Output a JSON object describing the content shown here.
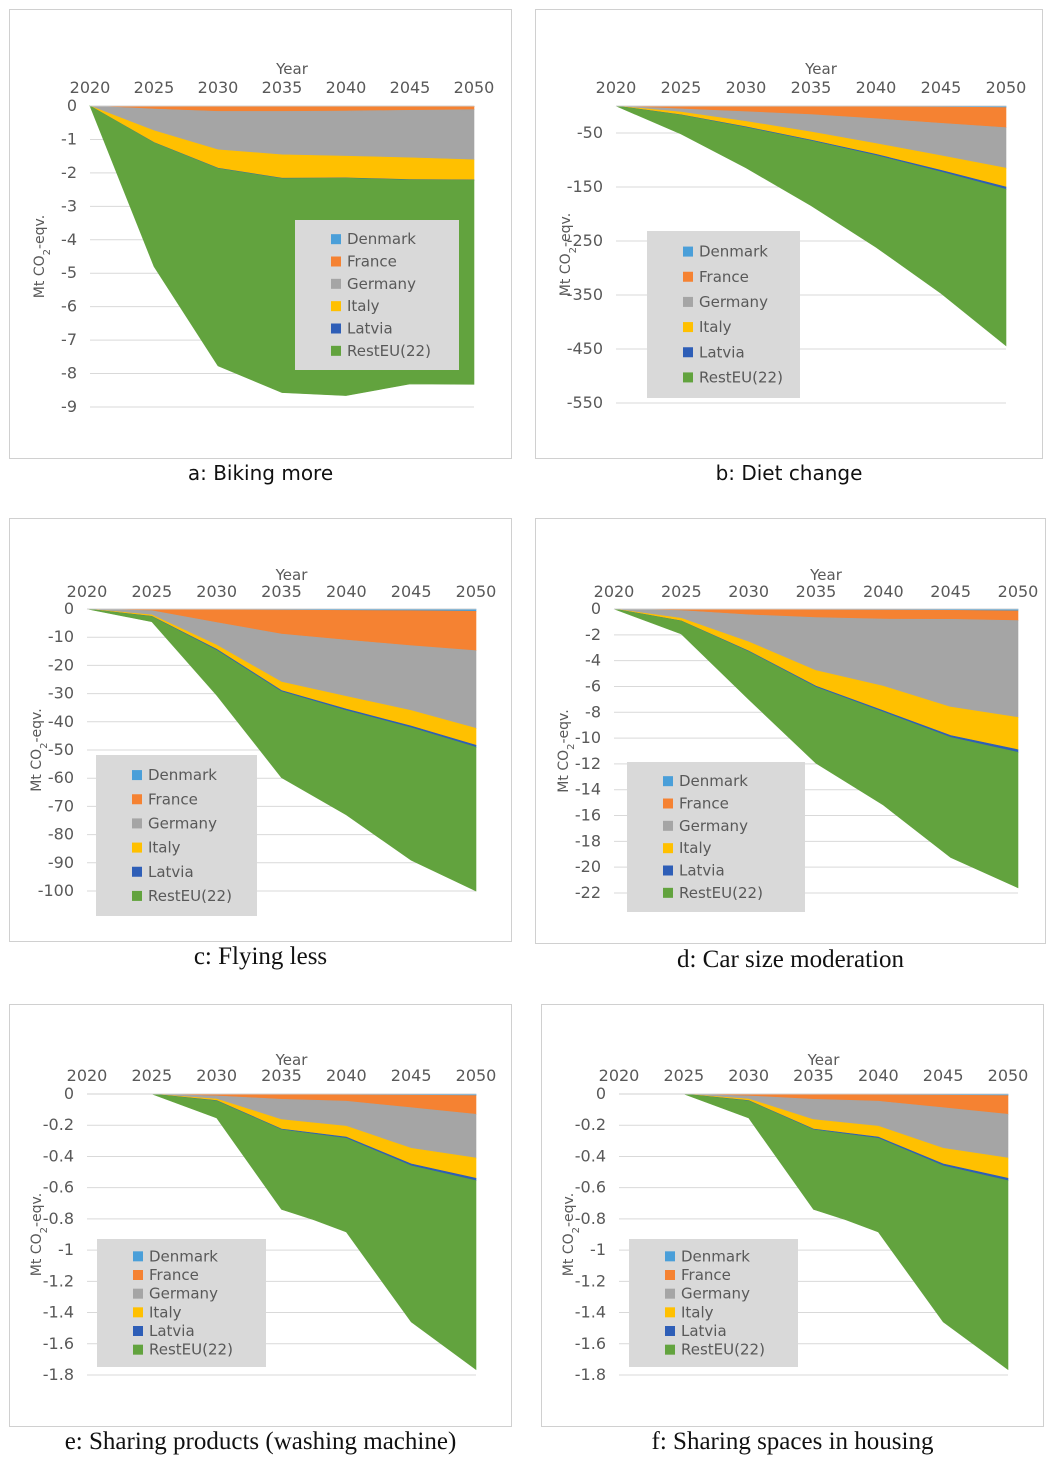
{
  "colors": {
    "Denmark": "#4A9FD9",
    "France": "#F58232",
    "Germany": "#A5A5A5",
    "Italy": "#FFC000",
    "Latvia": "#2E5EB7",
    "RestEU(22)": "#62A33E",
    "legend_bg": "#D9D9D9",
    "gridline": "#D9D9D9",
    "tick_text": "#595959"
  },
  "chart_data": [
    {
      "id": "a",
      "type": "area",
      "stacked": true,
      "caption": "a: Biking more",
      "xlabel": "Year",
      "ylabel": "Mt CO2-eqv.",
      "x_axis_position": "top",
      "x": [
        2020,
        2025,
        2030,
        2035,
        2040,
        2045,
        2050
      ],
      "xticks": [
        "2020",
        "2025",
        "2030",
        "2035",
        "2040",
        "2045",
        "2050"
      ],
      "yticks": [
        0,
        -1,
        -2,
        -3,
        -4,
        -5,
        -6,
        -7,
        -8,
        -9
      ],
      "ytick_labels": [
        "0",
        "-1",
        "-2",
        "-3",
        "-4",
        "-5",
        "-6",
        "-7",
        "-8",
        "-9"
      ],
      "ylim": [
        -9,
        0
      ],
      "legend": [
        "Denmark",
        "France",
        "Germany",
        "Italy",
        "Latvia",
        "RestEU(22)"
      ],
      "legend_position": "right-middle",
      "series": [
        {
          "name": "Denmark",
          "values": [
            0,
            -0.01,
            -0.01,
            -0.01,
            -0.01,
            -0.01,
            -0.01
          ]
        },
        {
          "name": "France",
          "values": [
            0,
            -0.08,
            -0.15,
            -0.15,
            -0.14,
            -0.12,
            -0.1
          ]
        },
        {
          "name": "Germany",
          "values": [
            0,
            -0.65,
            -1.15,
            -1.3,
            -1.35,
            -1.42,
            -1.5
          ]
        },
        {
          "name": "Italy",
          "values": [
            0,
            -0.35,
            -0.55,
            -0.7,
            -0.65,
            -0.65,
            -0.6
          ]
        },
        {
          "name": "Latvia",
          "values": [
            0,
            -0.01,
            -0.01,
            -0.01,
            -0.01,
            -0.01,
            -0.01
          ]
        },
        {
          "name": "RestEU(22)",
          "values": [
            0,
            -3.7,
            -5.9,
            -6.4,
            -6.5,
            -6.1,
            -6.1
          ]
        }
      ]
    },
    {
      "id": "b",
      "type": "area",
      "stacked": true,
      "caption": "b: Diet change",
      "xlabel": "Year",
      "ylabel": "Mt CO2-eqv.",
      "x_axis_position": "top",
      "x": [
        2020,
        2025,
        2030,
        2035,
        2040,
        2045,
        2050
      ],
      "xticks": [
        "2020",
        "2025",
        "2030",
        "2035",
        "2040",
        "2045",
        "2050"
      ],
      "yticks": [
        -50,
        -150,
        -250,
        -350,
        -450,
        -550
      ],
      "ytick_labels": [
        "-50",
        "-150",
        "-250",
        "-350",
        "-450",
        "-550"
      ],
      "ylim": [
        -550,
        0
      ],
      "legend": [
        "Denmark",
        "France",
        "Germany",
        "Italy",
        "Latvia",
        "RestEU(22)"
      ],
      "legend_position": "left-bottom",
      "series": [
        {
          "name": "Denmark",
          "values": [
            0,
            -0.3,
            -0.6,
            -1,
            -1.5,
            -2,
            -3
          ]
        },
        {
          "name": "France",
          "values": [
            0,
            -5,
            -10,
            -15,
            -22,
            -30,
            -37
          ]
        },
        {
          "name": "Germany",
          "values": [
            0,
            -6,
            -18,
            -32,
            -46,
            -60,
            -75
          ]
        },
        {
          "name": "Italy",
          "values": [
            0,
            -5,
            -10,
            -15,
            -20,
            -27,
            -35
          ]
        },
        {
          "name": "Latvia",
          "values": [
            0,
            -0.5,
            -1,
            -1.5,
            -2,
            -3,
            -4
          ]
        },
        {
          "name": "RestEU(22)",
          "values": [
            0,
            -35,
            -75,
            -120,
            -170,
            -225,
            -290
          ]
        }
      ]
    },
    {
      "id": "c",
      "type": "area",
      "stacked": true,
      "caption": "c: Flying less",
      "xlabel": "Year",
      "ylabel": "Mt CO2-eqv.",
      "x_axis_position": "top",
      "x": [
        2020,
        2025,
        2030,
        2035,
        2040,
        2045,
        2050
      ],
      "xticks": [
        "2020",
        "2025",
        "2030",
        "2035",
        "2040",
        "2045",
        "2050"
      ],
      "yticks": [
        0,
        -10,
        -20,
        -30,
        -40,
        -50,
        -60,
        -70,
        -80,
        -90,
        -100
      ],
      "ytick_labels": [
        "0",
        "-10",
        "-20",
        "-30",
        "-40",
        "-50",
        "-60",
        "-70",
        "-80",
        "-90",
        "-100"
      ],
      "ylim": [
        -100,
        0
      ],
      "legend": [
        "Denmark",
        "France",
        "Germany",
        "Italy",
        "Latvia",
        "RestEU(22)"
      ],
      "legend_position": "left-bottom",
      "series": [
        {
          "name": "Denmark",
          "values": [
            0,
            -0.1,
            -0.3,
            -0.4,
            -0.5,
            -0.6,
            -0.8
          ]
        },
        {
          "name": "France",
          "values": [
            0,
            -0.5,
            -4.5,
            -8.5,
            -10.5,
            -12.4,
            -14
          ]
        },
        {
          "name": "Germany",
          "values": [
            0,
            -1.5,
            -8,
            -17,
            -20,
            -23,
            -27.5
          ]
        },
        {
          "name": "Italy",
          "values": [
            0,
            -0.5,
            -1.5,
            -3,
            -4.5,
            -5.5,
            -6
          ]
        },
        {
          "name": "Latvia",
          "values": [
            0,
            -0.1,
            -0.3,
            -0.4,
            -0.5,
            -0.6,
            -0.7
          ]
        },
        {
          "name": "RestEU(22)",
          "values": [
            0,
            -1.8,
            -16,
            -30.5,
            -37,
            -47,
            -51
          ]
        }
      ]
    },
    {
      "id": "d",
      "type": "area",
      "stacked": true,
      "caption": "d: Car size moderation",
      "xlabel": "Year",
      "ylabel": "Mt CO2-eqv.",
      "x_axis_position": "top",
      "x": [
        2020,
        2025,
        2030,
        2035,
        2040,
        2045,
        2050
      ],
      "xticks": [
        "2020",
        "2025",
        "2030",
        "2035",
        "2040",
        "2045",
        "2050"
      ],
      "yticks": [
        0,
        -2,
        -4,
        -6,
        -8,
        -10,
        -12,
        -14,
        -16,
        -18,
        -20,
        -22
      ],
      "ytick_labels": [
        "0",
        "-2",
        "-4",
        "-6",
        "-8",
        "-10",
        "-12",
        "-14",
        "-16",
        "-18",
        "-20",
        "-22"
      ],
      "ylim": [
        -22,
        0
      ],
      "legend": [
        "Denmark",
        "France",
        "Germany",
        "Italy",
        "Latvia",
        "RestEU(22)"
      ],
      "legend_position": "left-bottom",
      "series": [
        {
          "name": "Denmark",
          "values": [
            0,
            -0.02,
            -0.05,
            -0.07,
            -0.08,
            -0.1,
            -0.15
          ]
        },
        {
          "name": "France",
          "values": [
            0,
            -0.1,
            -0.4,
            -0.6,
            -0.7,
            -0.7,
            -0.75
          ]
        },
        {
          "name": "Germany",
          "values": [
            0,
            -0.6,
            -2.1,
            -4.1,
            -5.2,
            -6.8,
            -7.5
          ]
        },
        {
          "name": "Italy",
          "values": [
            0,
            -0.2,
            -0.7,
            -1.2,
            -1.9,
            -2.2,
            -2.5
          ]
        },
        {
          "name": "Latvia",
          "values": [
            0,
            -0.02,
            -0.05,
            -0.08,
            -0.1,
            -0.15,
            -0.2
          ]
        },
        {
          "name": "RestEU(22)",
          "values": [
            0,
            -1.0,
            -3.7,
            -5.9,
            -7.2,
            -9.3,
            -10.5
          ]
        }
      ]
    },
    {
      "id": "e",
      "type": "area",
      "stacked": true,
      "caption": "e: Sharing products (washing machine)",
      "xlabel": "Year",
      "ylabel": "Mt CO2-eqv.",
      "x_axis_position": "top",
      "x": [
        2020,
        2025,
        2030,
        2035,
        2037.5,
        2040,
        2045,
        2050
      ],
      "xticks": [
        "2020",
        "2025",
        "2030",
        "2035",
        "2040",
        "2045",
        "2050"
      ],
      "yticks": [
        0,
        -0.2,
        -0.4,
        -0.6,
        -0.8,
        -1,
        -1.2,
        -1.4,
        -1.6,
        -1.8
      ],
      "ytick_labels": [
        "0",
        "-0.2",
        "-0.4",
        "-0.6",
        "-0.8",
        "-1",
        "-1.2",
        "-1.4",
        "-1.6",
        "-1.8"
      ],
      "ylim": [
        -1.8,
        0
      ],
      "legend": [
        "Denmark",
        "France",
        "Germany",
        "Italy",
        "Latvia",
        "RestEU(22)"
      ],
      "legend_position": "left-bottom",
      "series": [
        {
          "name": "Denmark",
          "values": [
            0,
            0,
            -0.002,
            -0.004,
            -0.005,
            -0.006,
            -0.008,
            -0.01
          ]
        },
        {
          "name": "France",
          "values": [
            0,
            0,
            -0.01,
            -0.03,
            -0.035,
            -0.04,
            -0.08,
            -0.12
          ]
        },
        {
          "name": "Germany",
          "values": [
            0,
            0,
            -0.02,
            -0.13,
            -0.145,
            -0.16,
            -0.26,
            -0.28
          ]
        },
        {
          "name": "Italy",
          "values": [
            0,
            0,
            -0.01,
            -0.06,
            -0.065,
            -0.07,
            -0.1,
            -0.13
          ]
        },
        {
          "name": "Latvia",
          "values": [
            0,
            0,
            -0.002,
            -0.005,
            -0.006,
            -0.008,
            -0.012,
            -0.015
          ]
        },
        {
          "name": "RestEU(22)",
          "values": [
            0,
            0,
            -0.11,
            -0.51,
            -0.55,
            -0.6,
            -1.0,
            -1.21
          ]
        }
      ]
    },
    {
      "id": "f",
      "type": "area",
      "stacked": true,
      "caption": "f: Sharing spaces in housing",
      "xlabel": "Year",
      "ylabel": "Mt CO2-eqv.",
      "x_axis_position": "top",
      "x": [
        2020,
        2025,
        2030,
        2035,
        2037.5,
        2040,
        2045,
        2050
      ],
      "xticks": [
        "2020",
        "2025",
        "2030",
        "2035",
        "2040",
        "2045",
        "2050"
      ],
      "yticks": [
        0,
        -0.2,
        -0.4,
        -0.6,
        -0.8,
        -1,
        -1.2,
        -1.4,
        -1.6,
        -1.8
      ],
      "ytick_labels": [
        "0",
        "-0.2",
        "-0.4",
        "-0.6",
        "-0.8",
        "-1",
        "-1.2",
        "-1.4",
        "-1.6",
        "-1.8"
      ],
      "ylim": [
        -1.8,
        0
      ],
      "legend": [
        "Denmark",
        "France",
        "Germany",
        "Italy",
        "Latvia",
        "RestEU(22)"
      ],
      "legend_position": "left-bottom",
      "series": [
        {
          "name": "Denmark",
          "values": [
            0,
            0,
            -0.002,
            -0.004,
            -0.005,
            -0.006,
            -0.008,
            -0.01
          ]
        },
        {
          "name": "France",
          "values": [
            0,
            0,
            -0.01,
            -0.03,
            -0.035,
            -0.04,
            -0.08,
            -0.12
          ]
        },
        {
          "name": "Germany",
          "values": [
            0,
            0,
            -0.02,
            -0.13,
            -0.145,
            -0.16,
            -0.26,
            -0.28
          ]
        },
        {
          "name": "Italy",
          "values": [
            0,
            0,
            -0.01,
            -0.06,
            -0.065,
            -0.07,
            -0.1,
            -0.13
          ]
        },
        {
          "name": "Latvia",
          "values": [
            0,
            0,
            -0.002,
            -0.005,
            -0.006,
            -0.008,
            -0.012,
            -0.015
          ]
        },
        {
          "name": "RestEU(22)",
          "values": [
            0,
            0,
            -0.11,
            -0.51,
            -0.55,
            -0.6,
            -1.0,
            -1.21
          ]
        }
      ]
    }
  ]
}
